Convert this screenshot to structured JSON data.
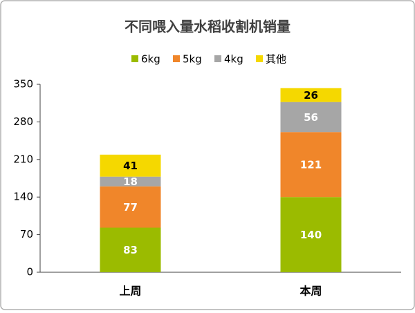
{
  "chart_data": {
    "type": "stacked_bar",
    "title": "不同喂入量水稻收割机销量",
    "categories": [
      "上周",
      "本周"
    ],
    "series": [
      {
        "name": "6kg",
        "color": "#9bbb00",
        "values": [
          83,
          140
        ]
      },
      {
        "name": "5kg",
        "color": "#f0862a",
        "values": [
          77,
          121
        ]
      },
      {
        "name": "4kg",
        "color": "#a6a6a6",
        "values": [
          18,
          56
        ]
      },
      {
        "name": "其他",
        "color": "#f5d800",
        "values": [
          41,
          26
        ]
      }
    ],
    "ylim": [
      0,
      350
    ],
    "yticks": [
      0,
      70,
      140,
      210,
      280,
      350
    ],
    "grid": false,
    "legend": "top"
  }
}
